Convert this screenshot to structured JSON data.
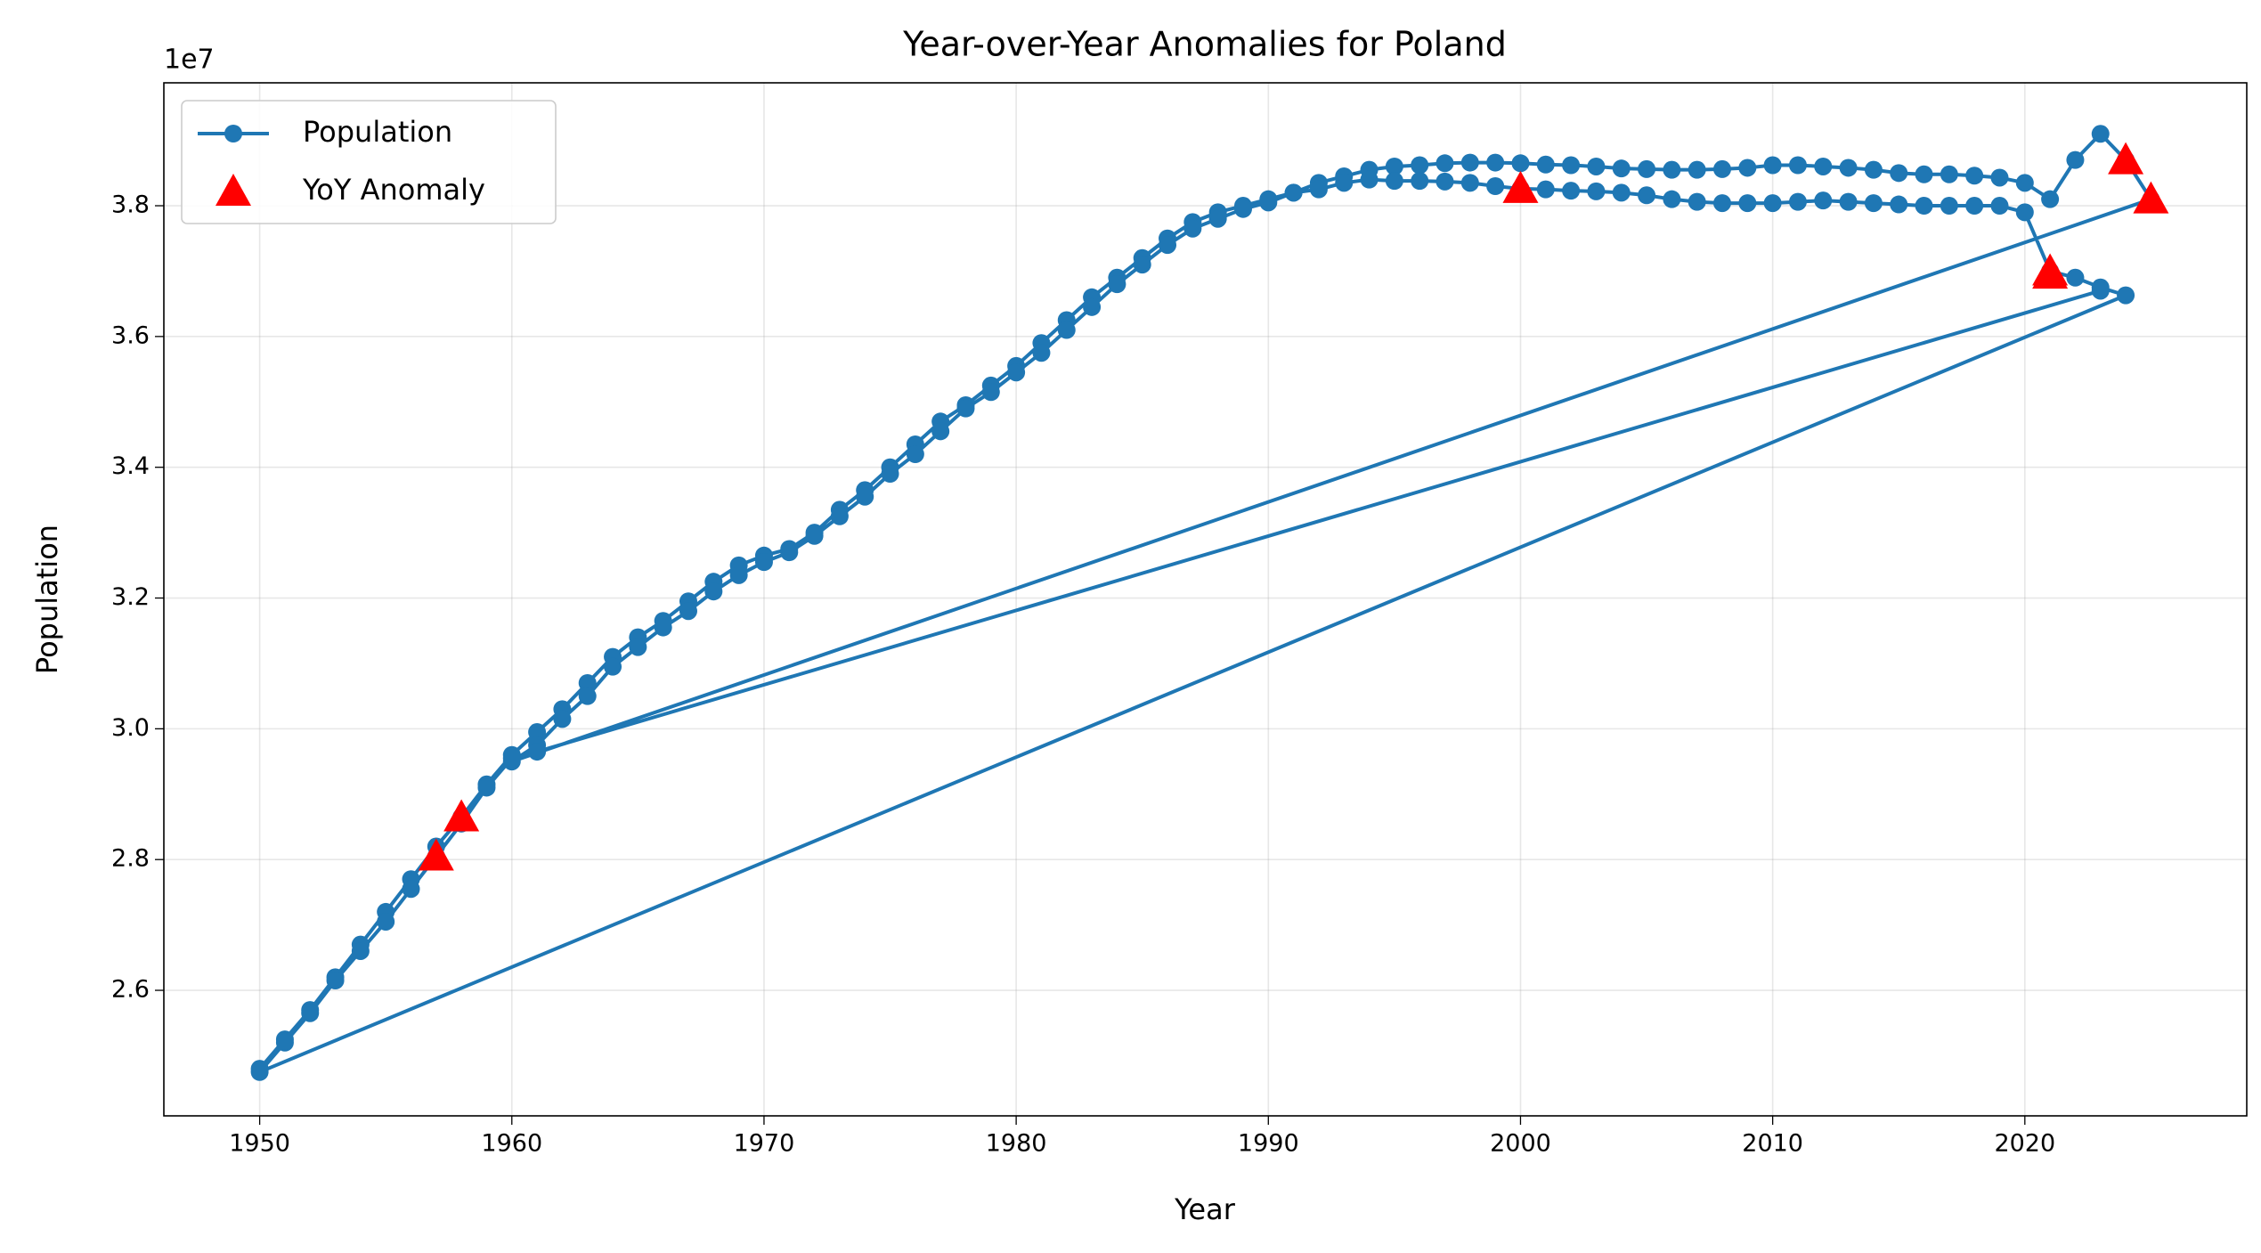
{
  "chart_data": {
    "type": "line",
    "title": "Year-over-Year Anomalies for Poland",
    "x_label": "Year",
    "y_label": "Population",
    "y_offset_label": "1e7",
    "xlim": [
      1946.2,
      2028.8
    ],
    "ylim": [
      24080000,
      39880000
    ],
    "xticks": [
      1950,
      1960,
      1970,
      1980,
      1990,
      2000,
      2010,
      2020
    ],
    "yticks": [
      {
        "value": 26000000,
        "label": "2.6"
      },
      {
        "value": 28000000,
        "label": "2.8"
      },
      {
        "value": 30000000,
        "label": "3.0"
      },
      {
        "value": 32000000,
        "label": "3.2"
      },
      {
        "value": 34000000,
        "label": "3.4"
      },
      {
        "value": 36000000,
        "label": "3.6"
      },
      {
        "value": 38000000,
        "label": "3.8"
      }
    ],
    "grid": true,
    "legend": "upper left",
    "series": [
      {
        "name": "Population",
        "color": "#1f77b4",
        "marker": "circle",
        "x": [
          1950,
          1951,
          1952,
          1953,
          1954,
          1955,
          1956,
          1957,
          1958,
          1959,
          1960,
          1961,
          1962,
          1963,
          1964,
          1965,
          1966,
          1967,
          1968,
          1969,
          1970,
          1971,
          1972,
          1973,
          1974,
          1975,
          1976,
          1977,
          1978,
          1979,
          1980,
          1981,
          1982,
          1983,
          1984,
          1985,
          1986,
          1987,
          1988,
          1989,
          1990,
          1991,
          1992,
          1993,
          1994,
          1995,
          1996,
          1997,
          1998,
          1999,
          2000,
          2001,
          2002,
          2003,
          2004,
          2005,
          2006,
          2007,
          2008,
          2009,
          2010,
          2011,
          2012,
          2013,
          2014,
          2015,
          2016,
          2017,
          2018,
          2019,
          2020,
          2021,
          2022,
          2023,
          2024,
          2025,
          1960,
          1961,
          1962,
          1963,
          1964,
          1965,
          1966,
          1967,
          1968,
          1969,
          1970,
          1971,
          1972,
          1973,
          1974,
          1975,
          1976,
          1977,
          1978,
          1979,
          1980,
          1981,
          1982,
          1983,
          1984,
          1985,
          1986,
          1987,
          1988,
          1989,
          1990,
          1991,
          1992,
          1993,
          1994,
          1995,
          1996,
          1997,
          1998,
          1999,
          2000,
          2001,
          2002,
          2003,
          2004,
          2005,
          2006,
          2007,
          2008,
          2009,
          2010,
          2011,
          2012,
          2013,
          2014,
          2015,
          2016,
          2017,
          2018,
          2019,
          2020,
          2021,
          2022,
          2023,
          2024,
          1950,
          1951,
          1952,
          1953,
          1954,
          1955,
          1956,
          1957,
          1958,
          1959,
          1960,
          1961,
          2023
        ],
        "values": [
          24800000,
          25250000,
          25700000,
          26200000,
          26700000,
          27200000,
          27700000,
          28200000,
          28650000,
          29150000,
          29600000,
          29950000,
          30300000,
          30700000,
          31100000,
          31400000,
          31650000,
          31950000,
          32250000,
          32500000,
          32650000,
          32750000,
          33000000,
          33350000,
          33650000,
          34000000,
          34350000,
          34700000,
          34950000,
          35250000,
          35550000,
          35900000,
          36250000,
          36600000,
          36900000,
          37200000,
          37500000,
          37750000,
          37900000,
          38000000,
          38100000,
          38200000,
          38350000,
          38450000,
          38550000,
          38600000,
          38620000,
          38650000,
          38660000,
          38660000,
          38650000,
          38630000,
          38620000,
          38600000,
          38570000,
          38560000,
          38550000,
          38550000,
          38560000,
          38580000,
          38620000,
          38620000,
          38600000,
          38580000,
          38550000,
          38500000,
          38480000,
          38480000,
          38460000,
          38430000,
          38350000,
          38100000,
          38700000,
          39100000,
          38700000,
          38100000,
          29500000,
          29750000,
          30150000,
          30500000,
          30950000,
          31250000,
          31550000,
          31800000,
          32100000,
          32350000,
          32550000,
          32700000,
          32950000,
          33250000,
          33550000,
          33900000,
          34200000,
          34550000,
          34900000,
          35150000,
          35450000,
          35750000,
          36100000,
          36450000,
          36800000,
          37100000,
          37400000,
          37650000,
          37800000,
          37950000,
          38050000,
          38200000,
          38250000,
          38350000,
          38400000,
          38380000,
          38380000,
          38370000,
          38350000,
          38300000,
          38260000,
          38250000,
          38230000,
          38220000,
          38200000,
          38160000,
          38100000,
          38060000,
          38040000,
          38040000,
          38040000,
          38060000,
          38080000,
          38060000,
          38040000,
          38020000,
          38000000,
          38000000,
          38000000,
          38000000,
          37900000,
          37000000,
          36900000,
          36750000,
          36630000,
          24750000,
          25200000,
          25650000,
          26150000,
          26600000,
          27050000,
          27550000,
          28050000,
          28550000,
          29100000,
          29550000,
          29650000,
          36700000
        ]
      },
      {
        "name": "YoY Anomaly",
        "color": "#ff0000",
        "marker": "triangle",
        "x": [
          1957,
          1958,
          2000,
          2021,
          2021,
          2024,
          2025
        ],
        "values": [
          28050000,
          28650000,
          38260000,
          37000000,
          36950000,
          38700000,
          38100000
        ]
      }
    ]
  }
}
